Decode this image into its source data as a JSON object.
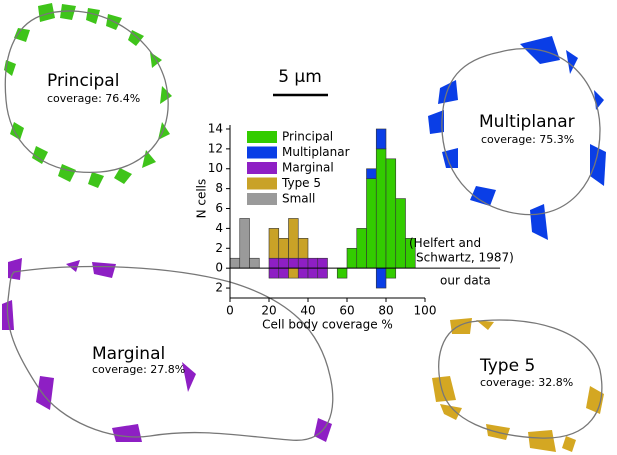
{
  "chart_data": {
    "type": "histogram",
    "bins": [
      0,
      5,
      10,
      15,
      20,
      25,
      30,
      35,
      40,
      45,
      50,
      55,
      60,
      65,
      70,
      75,
      80,
      85,
      90,
      95,
      100
    ],
    "series": [
      {
        "name": "Marginal",
        "color": "#8e1fc4",
        "values": [
          0,
          0,
          0,
          0,
          1,
          1,
          1,
          1,
          1,
          1,
          0,
          0,
          0,
          0,
          0,
          0,
          0,
          0,
          0,
          0
        ],
        "below_values": [
          0,
          0,
          0,
          0,
          1,
          1,
          0,
          1,
          1,
          1,
          0,
          0,
          0,
          0,
          0,
          0,
          0,
          0,
          0,
          0
        ]
      },
      {
        "name": "Type 5",
        "color": "#c9a227",
        "values": [
          0,
          0,
          0,
          0,
          3,
          2,
          4,
          2,
          0,
          0,
          0,
          0,
          0,
          0,
          0,
          0,
          0,
          0,
          0,
          0
        ],
        "below_values": [
          0,
          0,
          0,
          0,
          0,
          0,
          1,
          0,
          0,
          0,
          0,
          0,
          0,
          0,
          0,
          0,
          0,
          0,
          0,
          0
        ]
      },
      {
        "name": "Principal",
        "color": "#33cc00",
        "values": [
          0,
          0,
          0,
          0,
          0,
          0,
          0,
          0,
          0,
          0,
          0,
          0,
          2,
          4,
          9,
          12,
          11,
          7,
          3,
          0
        ],
        "below_values": [
          0,
          0,
          0,
          0,
          0,
          0,
          0,
          0,
          0,
          0,
          0,
          1,
          0,
          0,
          0,
          0,
          1,
          0,
          0,
          0
        ]
      },
      {
        "name": "Multiplanar",
        "color": "#0a3ee6",
        "values": [
          0,
          0,
          0,
          0,
          0,
          0,
          0,
          0,
          0,
          0,
          0,
          0,
          0,
          0,
          1,
          2,
          0,
          0,
          0,
          0
        ],
        "below_values": [
          0,
          0,
          0,
          0,
          0,
          0,
          0,
          0,
          0,
          0,
          0,
          0,
          0,
          0,
          0,
          2,
          0,
          0,
          0,
          0
        ]
      },
      {
        "name": "Small",
        "color": "#9a9a9a",
        "values": [
          1,
          5,
          1,
          0,
          0,
          0,
          0,
          0,
          0,
          0,
          0,
          0,
          0,
          0,
          0,
          0,
          0,
          0,
          0,
          0
        ],
        "below_values": [
          0,
          0,
          0,
          0,
          0,
          0,
          0,
          0,
          0,
          0,
          0,
          0,
          0,
          0,
          0,
          0,
          0,
          0,
          0,
          0
        ]
      }
    ],
    "legend_order": [
      2,
      3,
      0,
      1,
      4
    ],
    "xlabel": "Cell body coverage %",
    "ylabel": "N cells",
    "xlim": [
      0,
      100
    ],
    "xticks": [
      0,
      20,
      40,
      60,
      80,
      100
    ],
    "ylim": [
      -3,
      14.4
    ],
    "yticks": [
      {
        "value": -2,
        "label": "2"
      },
      0,
      2,
      4,
      6,
      8,
      10,
      12,
      14
    ],
    "annotation_upper": "(Helfert and",
    "annotation_upper2": "Schwartz, 1987)",
    "annotation_lower": "our data"
  },
  "scale_bar": "5 μm",
  "cells": [
    {
      "name": "Principal",
      "coverage": "coverage: 76.4%"
    },
    {
      "name": "Multiplanar",
      "coverage": "coverage: 75.3%"
    },
    {
      "name": "Marginal",
      "coverage": "coverage: 27.8%"
    },
    {
      "name": "Type 5",
      "coverage": "coverage: 32.8%"
    }
  ]
}
